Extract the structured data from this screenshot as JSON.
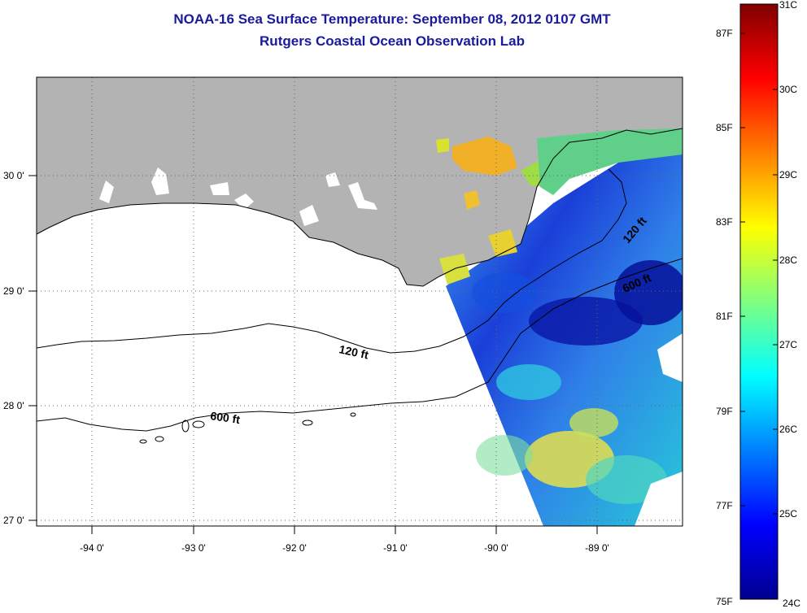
{
  "header": {
    "title": "NOAA-16 Sea Surface Temperature:  September 08, 2012 0107 GMT",
    "subtitle": "Rutgers Coastal Ocean Observation Lab"
  },
  "map": {
    "lon_range": [
      -94.5,
      -88.2
    ],
    "lat_range": [
      26.95,
      29.85
    ],
    "x_ticks": [
      {
        "lon": -94,
        "label": "-94 0'"
      },
      {
        "lon": -93,
        "label": "-93 0'"
      },
      {
        "lon": -92,
        "label": "-92 0'"
      },
      {
        "lon": -91,
        "label": "-91 0'"
      },
      {
        "lon": -90,
        "label": "-90 0'"
      },
      {
        "lon": -89,
        "label": "-89 0'"
      }
    ],
    "y_ticks": [
      {
        "lat": 30,
        "label": "30 0'"
      },
      {
        "lat": 29,
        "label": "29 0'"
      },
      {
        "lat": 28,
        "label": "28 0'"
      },
      {
        "lat": 27,
        "label": "27 0'"
      }
    ],
    "contours": [
      {
        "depth": "120 ft",
        "label": "120 ft"
      },
      {
        "depth": "600 ft",
        "label": "600 ft"
      },
      {
        "depth": "120 ft",
        "label": "120 ft"
      },
      {
        "depth": "600 ft",
        "label": "600 ft"
      }
    ],
    "land_color": "#b3b3b3",
    "grid_style": "dotted"
  },
  "colorbar": {
    "min_c": 24,
    "max_c": 31,
    "celsius_labels": [
      "31C",
      "30C",
      "29C",
      "28C",
      "27C",
      "26C",
      "25C",
      "24C"
    ],
    "fahrenheit_labels": [
      "87F",
      "85F",
      "83F",
      "81F",
      "79F",
      "77F",
      "75F"
    ],
    "colormap": "jet"
  }
}
